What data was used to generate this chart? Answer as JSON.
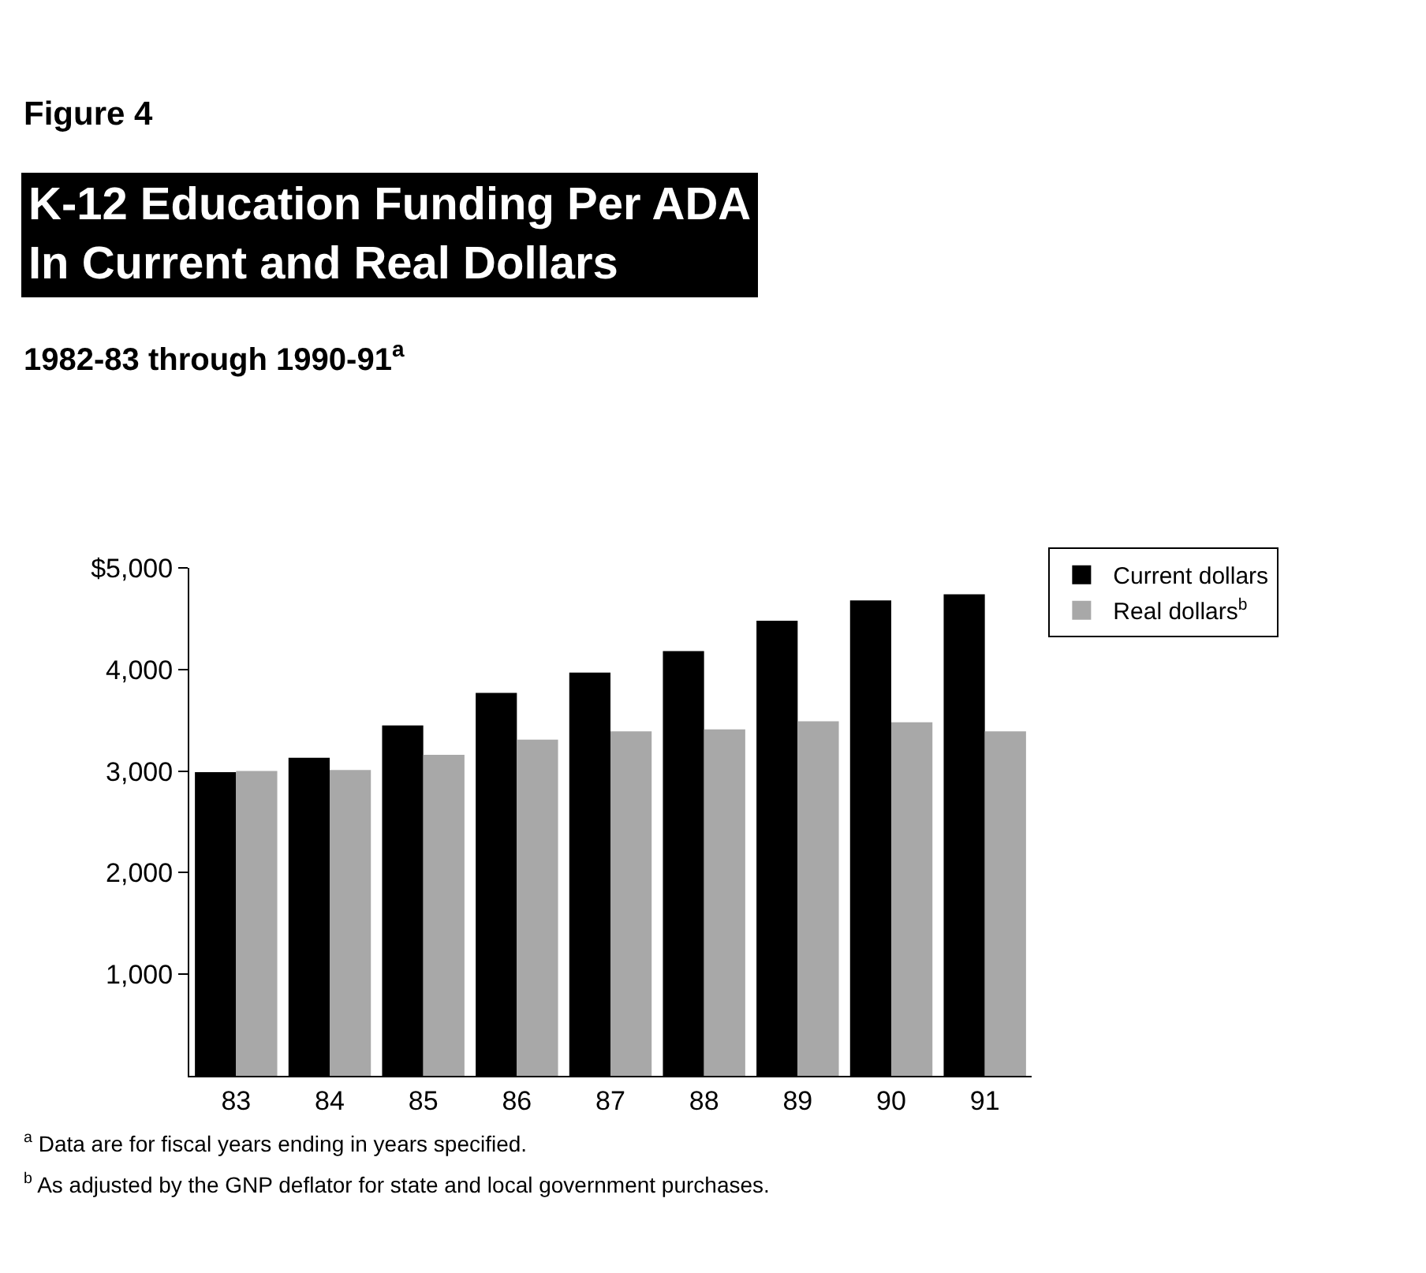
{
  "chart_data": {
    "type": "bar",
    "title": "K-12 Education Funding Per ADA\nIn Current and Real Dollars",
    "subtitle": "1982-83 through 1990-91$^{a}$",
    "categories": [
      "83",
      "84",
      "85",
      "86",
      "87",
      "88",
      "89",
      "90",
      "91"
    ],
    "series": [
      {
        "name": "Current dollars",
        "color": "#000000",
        "values": [
          2990,
          3130,
          3450,
          3770,
          3970,
          4180,
          4480,
          4680,
          4740
        ]
      },
      {
        "name": "Real dollars$^{b}$",
        "color": "#a8a8a8",
        "values": [
          3000,
          3010,
          3160,
          3310,
          3390,
          3410,
          3490,
          3480,
          3390
        ]
      }
    ],
    "ylim": [
      0,
      5000
    ],
    "yticks": [
      {
        "value": 1000,
        "label": "1,000"
      },
      {
        "value": 2000,
        "label": "2,000"
      },
      {
        "value": 3000,
        "label": "3,000"
      },
      {
        "value": 4000,
        "label": "4,000"
      },
      {
        "value": 5000,
        "label": "$5,000"
      }
    ],
    "legend": "top right",
    "annotations": [
      "Figure 4",
      "$^{a}$ Data are for fiscal years ending in years specified.",
      "$^{b}$ As adjusted by the GNP deflator for state and local government purchases."
    ]
  }
}
